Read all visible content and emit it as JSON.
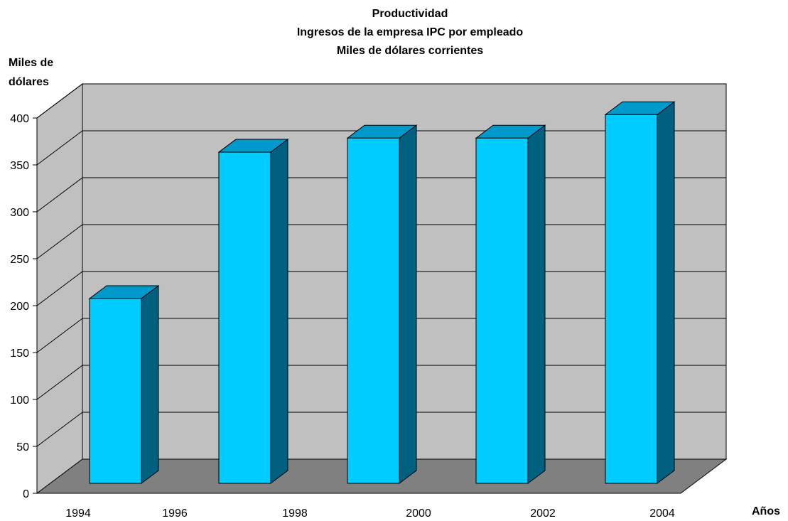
{
  "chart_data": {
    "type": "bar",
    "title": [
      "Productividad",
      "Ingresos de la empresa IPC por empleado",
      "Miles de dólares corrientes"
    ],
    "ylabel": [
      "Miles de",
      "dólares"
    ],
    "xlabel": "Años",
    "x_ticks": [
      "1994",
      "1996",
      "1998",
      "2000",
      "2002",
      "2004"
    ],
    "y_ticks": [
      "0",
      "50",
      "100",
      "150",
      "200",
      "250",
      "300",
      "350",
      "400"
    ],
    "ylim": [
      0,
      400
    ],
    "series": [
      {
        "values": [
          197,
          353,
          368,
          368,
          393
        ]
      }
    ],
    "grid": true,
    "style_3d": true,
    "colors": {
      "bar_front": "#00ccff",
      "bar_top": "#0099cc",
      "bar_side": "#006080",
      "back_wall": "#c0c0c0",
      "floor": "#808080",
      "grid": "#000000"
    }
  }
}
